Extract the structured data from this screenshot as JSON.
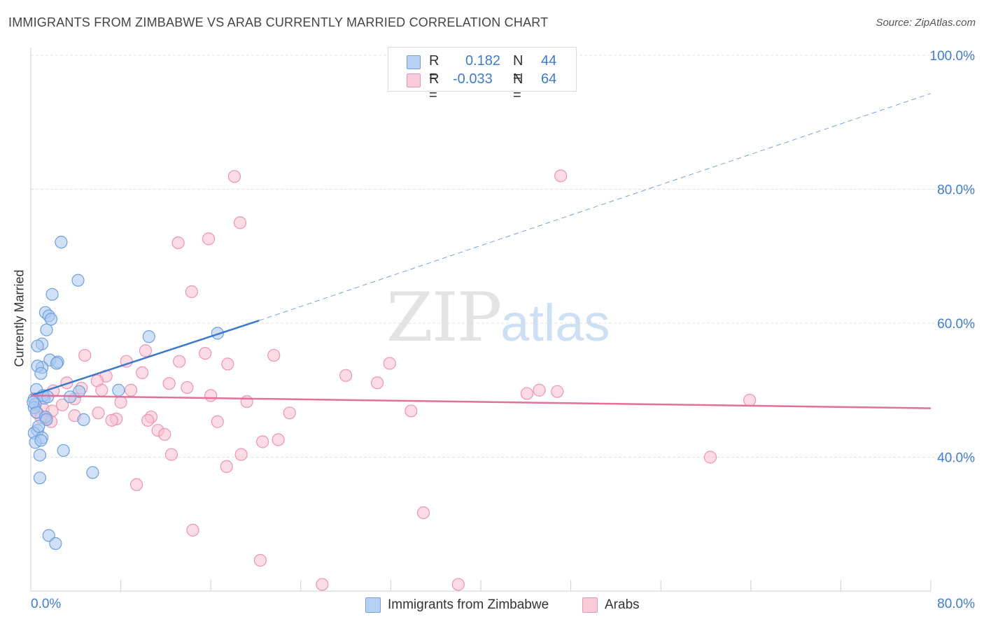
{
  "header": {
    "title": "IMMIGRANTS FROM ZIMBABWE VS ARAB CURRENTLY MARRIED CORRELATION CHART",
    "source": "Source: ZipAtlas.com"
  },
  "watermark": {
    "zip": "ZIP",
    "atlas": "atlas"
  },
  "legend_top": {
    "rows": [
      {
        "r_label": "R =",
        "r_value": "0.182",
        "n_label": "N =",
        "n_value": "44"
      },
      {
        "r_label": "R =",
        "r_value": "-0.033",
        "n_label": "N =",
        "n_value": "64"
      }
    ]
  },
  "legend_bottom": {
    "items": [
      {
        "label": "Immigrants from Zimbabwe"
      },
      {
        "label": "Arabs"
      }
    ]
  },
  "colors": {
    "blue_fill": "#a9c8f0",
    "blue_stroke": "#6f9fdc",
    "blue_line": "#3a78d0",
    "pink_fill": "#f7bfd0",
    "pink_stroke": "#ee93b0",
    "pink_line": "#e2709a",
    "axis_text": "#3d7cd0",
    "grid": "#e0e0e0"
  },
  "chart_data": {
    "type": "scatter",
    "title": "IMMIGRANTS FROM ZIMBABWE VS ARAB CURRENTLY MARRIED CORRELATION CHART",
    "xlabel": "",
    "ylabel": "Currently Married",
    "xlim": [
      0,
      80
    ],
    "ylim": [
      20,
      100
    ],
    "x_tick_labels": [
      "0.0%",
      "80.0%"
    ],
    "y_ticks": [
      40,
      60,
      80,
      100
    ],
    "y_tick_labels": [
      "40.0%",
      "60.0%",
      "80.0%",
      "100.0%"
    ],
    "grid": true,
    "series": [
      {
        "name": "Immigrants from Zimbabwe",
        "color": "blue",
        "R": 0.182,
        "N": 44,
        "trend": {
          "x0": 0,
          "y0": 49.2,
          "x1": 20.3,
          "y1": 60.4,
          "dashed_to_x": 80,
          "dashed_to_y": 94.3
        },
        "points": [
          [
            2.7,
            72.1
          ],
          [
            4.2,
            66.4
          ],
          [
            1.9,
            64.3
          ],
          [
            1.3,
            61.6
          ],
          [
            1.6,
            61.1
          ],
          [
            1.8,
            60.6
          ],
          [
            1.4,
            59.0
          ],
          [
            10.5,
            58.0
          ],
          [
            16.6,
            58.5
          ],
          [
            1.0,
            56.9
          ],
          [
            0.6,
            56.6
          ],
          [
            1.7,
            54.5
          ],
          [
            2.4,
            54.2
          ],
          [
            2.3,
            54.0
          ],
          [
            1.0,
            53.4
          ],
          [
            0.6,
            53.6
          ],
          [
            0.9,
            52.5
          ],
          [
            0.5,
            50.1
          ],
          [
            4.3,
            49.8
          ],
          [
            7.8,
            50.0
          ],
          [
            3.5,
            49.0
          ],
          [
            0.3,
            48.7
          ],
          [
            1.2,
            48.8
          ],
          [
            1.1,
            49.2
          ],
          [
            0.4,
            47.9
          ],
          [
            0.3,
            47.4
          ],
          [
            0.5,
            46.7
          ],
          [
            1.3,
            46.0
          ],
          [
            1.4,
            45.6
          ],
          [
            4.7,
            45.6
          ],
          [
            0.6,
            44.0
          ],
          [
            0.3,
            43.6
          ],
          [
            1.0,
            42.9
          ],
          [
            0.4,
            42.2
          ],
          [
            0.9,
            42.5
          ],
          [
            2.9,
            41.0
          ],
          [
            0.8,
            40.3
          ],
          [
            5.5,
            37.7
          ],
          [
            0.8,
            36.9
          ],
          [
            1.6,
            28.3
          ],
          [
            2.2,
            27.1
          ],
          [
            0.2,
            48.2
          ],
          [
            0.7,
            44.6
          ],
          [
            1.5,
            49.0
          ]
        ]
      },
      {
        "name": "Arabs",
        "color": "pink",
        "R": -0.033,
        "N": 64,
        "trend": {
          "x0": 0,
          "y0": 49.2,
          "x1": 80,
          "y1": 47.3
        },
        "points": [
          [
            18.1,
            81.9
          ],
          [
            47.1,
            82.0
          ],
          [
            18.6,
            75.0
          ],
          [
            15.8,
            72.6
          ],
          [
            13.1,
            72.0
          ],
          [
            14.3,
            64.7
          ],
          [
            10.2,
            55.9
          ],
          [
            4.8,
            55.2
          ],
          [
            15.5,
            55.5
          ],
          [
            21.6,
            55.2
          ],
          [
            8.5,
            54.3
          ],
          [
            13.2,
            54.3
          ],
          [
            17.5,
            53.9
          ],
          [
            31.9,
            54.0
          ],
          [
            9.9,
            52.6
          ],
          [
            28.0,
            52.2
          ],
          [
            6.7,
            52.1
          ],
          [
            3.2,
            51.1
          ],
          [
            12.3,
            51.0
          ],
          [
            30.8,
            51.1
          ],
          [
            5.9,
            51.4
          ],
          [
            4.5,
            50.3
          ],
          [
            13.9,
            50.4
          ],
          [
            6.3,
            50.0
          ],
          [
            8.9,
            50.0
          ],
          [
            44.1,
            49.5
          ],
          [
            45.2,
            50.0
          ],
          [
            46.8,
            49.8
          ],
          [
            2.0,
            49.9
          ],
          [
            16.0,
            49.2
          ],
          [
            19.2,
            48.3
          ],
          [
            3.9,
            48.7
          ],
          [
            63.9,
            48.5
          ],
          [
            8.0,
            48.2
          ],
          [
            2.8,
            47.8
          ],
          [
            1.1,
            47.2
          ],
          [
            1.9,
            46.9
          ],
          [
            0.6,
            46.6
          ],
          [
            6.0,
            46.6
          ],
          [
            23.0,
            46.6
          ],
          [
            33.8,
            46.9
          ],
          [
            10.7,
            46.0
          ],
          [
            3.9,
            46.2
          ],
          [
            7.6,
            45.7
          ],
          [
            1.4,
            45.8
          ],
          [
            7.2,
            45.5
          ],
          [
            10.4,
            45.5
          ],
          [
            1.8,
            45.3
          ],
          [
            16.6,
            45.3
          ],
          [
            0.9,
            45.9
          ],
          [
            11.3,
            44.0
          ],
          [
            11.9,
            43.4
          ],
          [
            20.6,
            42.3
          ],
          [
            22.0,
            42.6
          ],
          [
            12.5,
            40.4
          ],
          [
            18.7,
            40.4
          ],
          [
            60.4,
            40.0
          ],
          [
            17.4,
            38.6
          ],
          [
            9.4,
            35.9
          ],
          [
            34.9,
            31.7
          ],
          [
            14.4,
            29.1
          ],
          [
            20.4,
            24.6
          ],
          [
            25.9,
            21.0
          ],
          [
            38.0,
            21.0
          ]
        ]
      }
    ]
  }
}
